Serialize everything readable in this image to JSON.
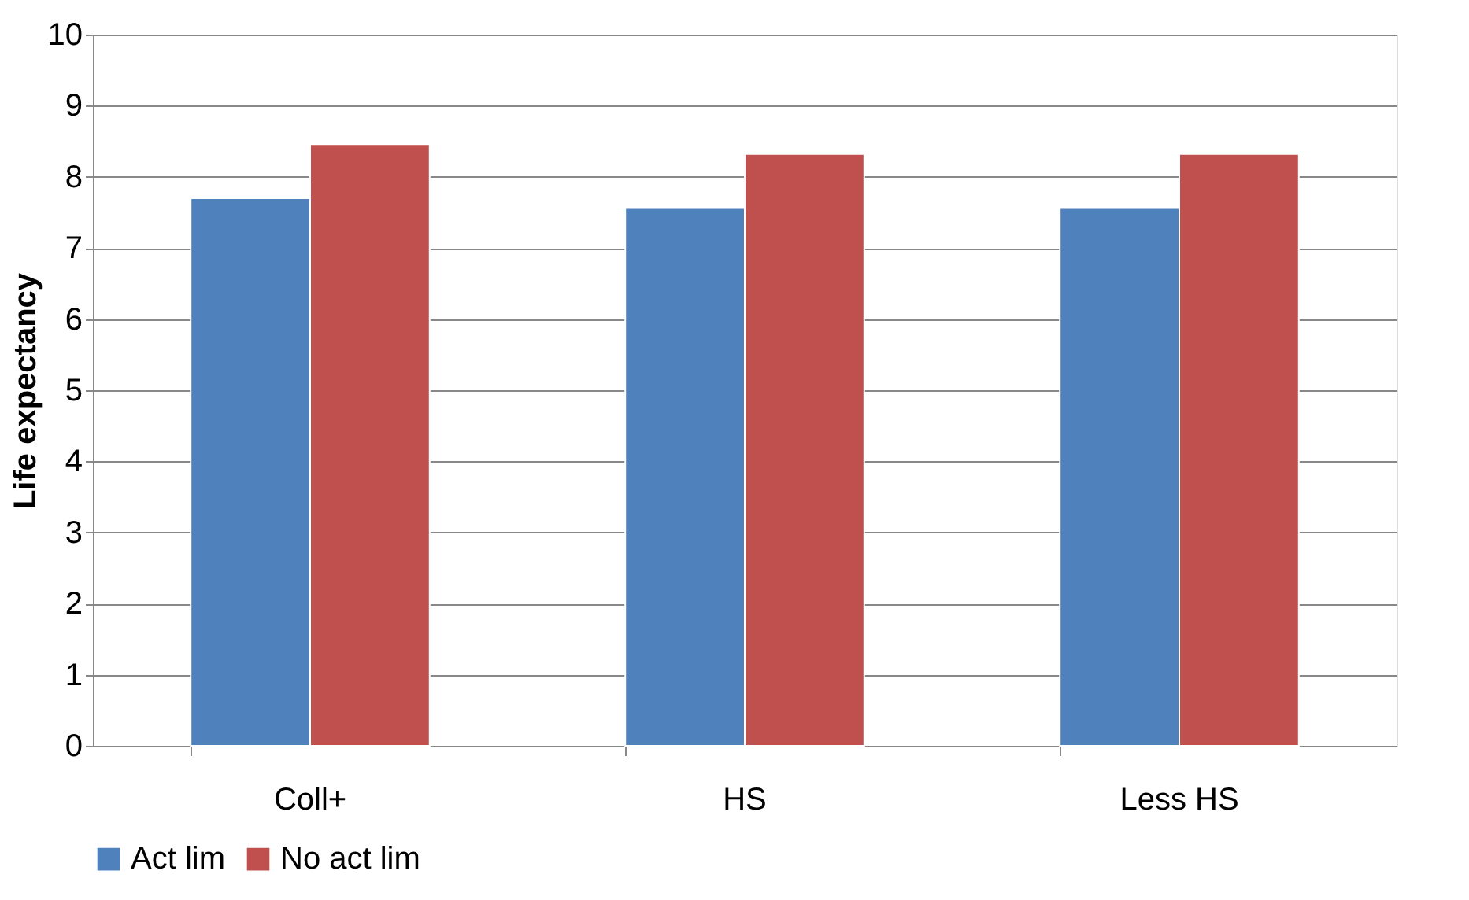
{
  "chart_data": {
    "type": "bar",
    "ylabel": "Life expectancy",
    "categories": [
      "Coll+",
      "HS",
      "Less HS"
    ],
    "series": [
      {
        "name": "Act lim",
        "color": "#4f81bd",
        "values": [
          7.7,
          7.56,
          7.56
        ]
      },
      {
        "name": "No act lim",
        "color": "#c0504d",
        "values": [
          8.46,
          8.32,
          8.32
        ]
      }
    ],
    "ylim": [
      0,
      10
    ],
    "yticks": [
      0,
      1,
      2,
      3,
      4,
      5,
      6,
      7,
      8,
      9,
      10
    ],
    "grid": "y",
    "legend": "bottom"
  }
}
